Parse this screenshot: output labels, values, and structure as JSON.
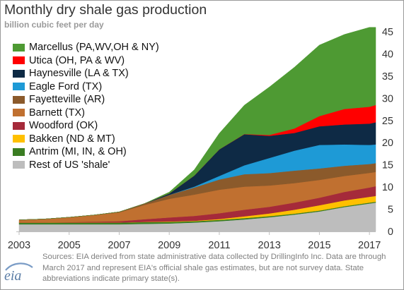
{
  "chart_data": {
    "type": "area",
    "stacked": true,
    "title": "Monthly dry shale gas production",
    "subtitle": "billion cubic feet per day",
    "xlabel": "",
    "ylabel": "",
    "xlim": [
      2003,
      2017.25
    ],
    "ylim": [
      0,
      45
    ],
    "x_ticks": [
      "2003",
      "2005",
      "2007",
      "2009",
      "2011",
      "2013",
      "2015",
      "2017"
    ],
    "y_ticks": [
      "0",
      "5",
      "10",
      "15",
      "20",
      "25",
      "30",
      "35",
      "40",
      "45"
    ],
    "y_axis_side": "right",
    "grid": false,
    "legend_position": "top-left",
    "x": [
      2003,
      2004,
      2005,
      2006,
      2007,
      2008,
      2009,
      2010,
      2011,
      2012,
      2013,
      2014,
      2015,
      2016,
      2017,
      2017.25
    ],
    "series": [
      {
        "name": "Rest of US 'shale'",
        "color": "#bdbdbd",
        "values": [
          1.6,
          1.6,
          1.6,
          1.6,
          1.6,
          1.7,
          1.8,
          2.0,
          2.3,
          2.7,
          3.2,
          3.8,
          4.5,
          5.5,
          6.3,
          6.5
        ]
      },
      {
        "name": "Antrim (MI, IN, & OH)",
        "color": "#3a7d22",
        "values": [
          0.4,
          0.4,
          0.4,
          0.4,
          0.4,
          0.4,
          0.35,
          0.3,
          0.3,
          0.3,
          0.25,
          0.2,
          0.2,
          0.2,
          0.2,
          0.2
        ]
      },
      {
        "name": "Bakken (ND & MT)",
        "color": "#ffc000",
        "values": [
          0.0,
          0.0,
          0.0,
          0.0,
          0.0,
          0.05,
          0.1,
          0.1,
          0.2,
          0.4,
          0.6,
          0.9,
          1.2,
          1.3,
          1.3,
          1.3
        ]
      },
      {
        "name": "Woodford (OK)",
        "color": "#a52a3a",
        "values": [
          0.0,
          0.0,
          0.1,
          0.2,
          0.3,
          0.6,
          0.9,
          1.1,
          1.3,
          1.5,
          1.5,
          1.6,
          1.7,
          1.9,
          2.1,
          2.2
        ]
      },
      {
        "name": "Barnett (TX)",
        "color": "#c07030",
        "values": [
          0.6,
          0.8,
          1.1,
          1.5,
          2.0,
          3.2,
          4.2,
          4.8,
          5.3,
          5.2,
          4.8,
          4.4,
          4.0,
          3.6,
          3.3,
          3.2
        ]
      },
      {
        "name": "Fayetteville (AR)",
        "color": "#8b5a2b",
        "values": [
          0.0,
          0.0,
          0.0,
          0.0,
          0.1,
          0.3,
          0.9,
          1.6,
          2.3,
          2.8,
          2.8,
          2.8,
          2.6,
          2.3,
          2.0,
          2.0
        ]
      },
      {
        "name": "Eagle Ford (TX)",
        "color": "#1e9ad6",
        "values": [
          0.0,
          0.0,
          0.0,
          0.0,
          0.0,
          0.0,
          0.0,
          0.2,
          0.8,
          2.0,
          3.4,
          4.5,
          5.3,
          4.8,
          4.3,
          4.2
        ]
      },
      {
        "name": "Haynesville (LA & TX)",
        "color": "#0e2a45",
        "values": [
          0.0,
          0.0,
          0.0,
          0.0,
          0.0,
          0.0,
          0.3,
          2.5,
          6.0,
          7.0,
          5.0,
          4.0,
          4.2,
          4.5,
          4.8,
          5.0
        ]
      },
      {
        "name": "Utica (OH, PA & WV)",
        "color": "#ff0000",
        "values": [
          0.0,
          0.0,
          0.0,
          0.0,
          0.0,
          0.0,
          0.0,
          0.0,
          0.0,
          0.05,
          0.2,
          1.0,
          2.3,
          3.5,
          3.8,
          3.9
        ]
      },
      {
        "name": "Marcellus (PA,WV,OH & NY)",
        "color": "#4e9a33",
        "values": [
          0.0,
          0.0,
          0.0,
          0.0,
          0.0,
          0.0,
          0.3,
          1.3,
          3.6,
          6.5,
          10.8,
          13.8,
          16.0,
          16.8,
          17.9,
          17.5
        ]
      }
    ]
  },
  "source_note": "Sources: EIA derived from state administrative data collected by DrillingInfo Inc. Data are through March 2017  and represent EIA's official shale gas estimates, but are not survey data. State abbreviations indicate primary state(s).",
  "logo_text": "eia"
}
